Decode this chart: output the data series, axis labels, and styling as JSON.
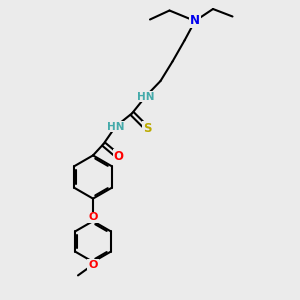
{
  "background_color": "#ebebeb",
  "bond_color": "#000000",
  "bond_width": 1.5,
  "atom_colors": {
    "N": "#0000ee",
    "O": "#ff0000",
    "S": "#bbaa00",
    "C": "#000000",
    "HN": "#44aaaa"
  },
  "figsize": [
    3.0,
    3.0
  ],
  "dpi": 100
}
